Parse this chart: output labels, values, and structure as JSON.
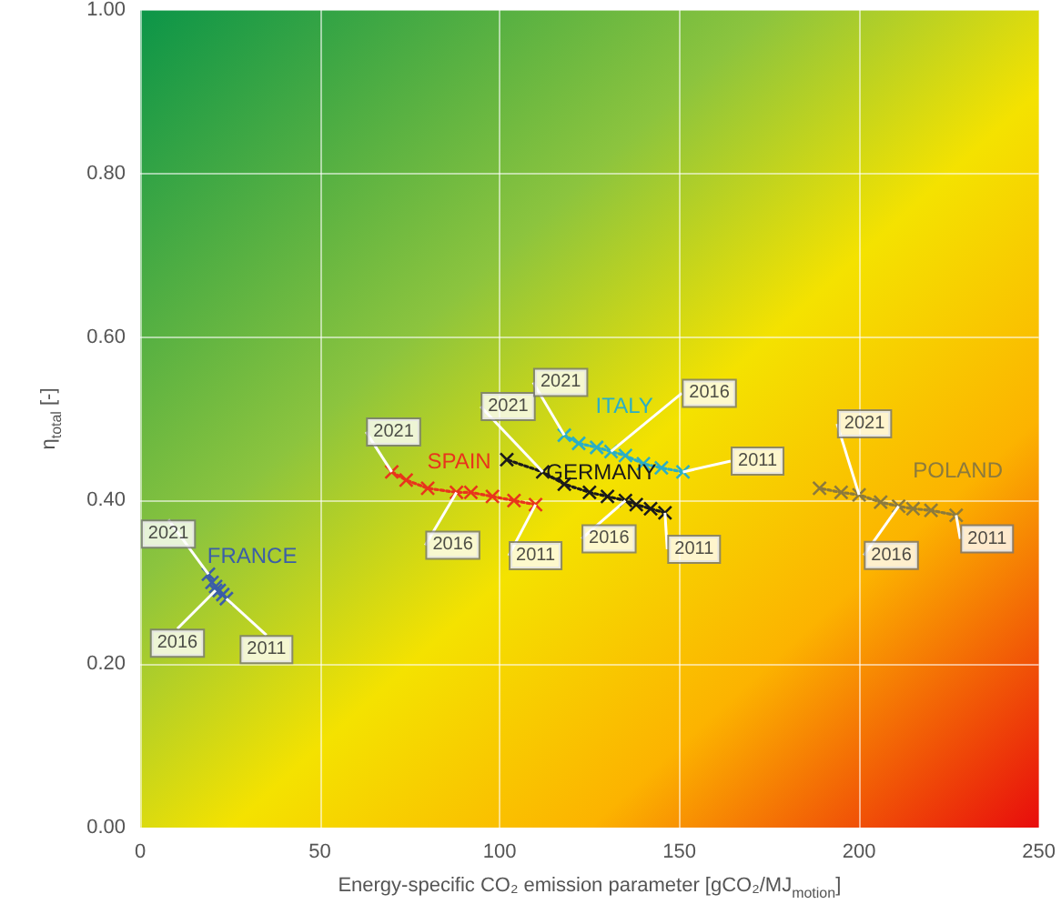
{
  "chart_data": {
    "type": "line",
    "xlabel": "Energy-specific CO₂ emission parameter [gCO₂/MJ$_{motion}$]",
    "ylabel": "η$_{total}$ [-]",
    "xlim": [
      0,
      250
    ],
    "xticks": [
      0,
      50,
      100,
      150,
      200,
      250
    ],
    "ylim": [
      0,
      1
    ],
    "yticks": [
      {
        "value": 0,
        "label": "0.00"
      },
      {
        "value": 0.2,
        "label": "0.20"
      },
      {
        "value": 0.4,
        "label": "0.40"
      },
      {
        "value": 0.6,
        "label": "0.60"
      },
      {
        "value": 0.8,
        "label": "0.80"
      },
      {
        "value": 1,
        "label": "1.00"
      }
    ],
    "grid": true,
    "marker": "cross",
    "line_style": "dotted",
    "legend": false,
    "series": [
      {
        "name": "FRANCE",
        "color": "#3b5ea8",
        "x": [
          24,
          23,
          22,
          21,
          21,
          20,
          19
        ],
        "values": [
          0.28,
          0.285,
          0.29,
          0.29,
          0.295,
          0.3,
          0.31
        ]
      },
      {
        "name": "SPAIN",
        "color": "#e8341c",
        "x": [
          110,
          104,
          98,
          92,
          88,
          80,
          74,
          70
        ],
        "values": [
          0.395,
          0.4,
          0.405,
          0.41,
          0.41,
          0.415,
          0.425,
          0.435
        ]
      },
      {
        "name": "GERMANY",
        "color": "#1a1a1a",
        "x": [
          146,
          142,
          138,
          135,
          130,
          125,
          118,
          112,
          102
        ],
        "values": [
          0.385,
          0.39,
          0.395,
          0.4,
          0.405,
          0.41,
          0.42,
          0.435,
          0.45
        ]
      },
      {
        "name": "ITALY",
        "color": "#2aaec6",
        "x": [
          151,
          145,
          140,
          135,
          131,
          127,
          122,
          118
        ],
        "values": [
          0.435,
          0.44,
          0.445,
          0.455,
          0.46,
          0.465,
          0.47,
          0.48
        ]
      },
      {
        "name": "POLAND",
        "color": "#8c7a3c",
        "x": [
          227,
          220,
          215,
          211,
          206,
          200,
          195,
          189
        ],
        "values": [
          0.382,
          0.388,
          0.39,
          0.393,
          0.398,
          0.407,
          0.41,
          0.415
        ]
      }
    ],
    "annotations": [
      {
        "text": "2021",
        "x": 19,
        "y": 0.31
      },
      {
        "text": "2016",
        "x": 21,
        "y": 0.29
      },
      {
        "text": "2011",
        "x": 24,
        "y": 0.28
      },
      {
        "text": "2021",
        "x": 70,
        "y": 0.435
      },
      {
        "text": "2016",
        "x": 88,
        "y": 0.41
      },
      {
        "text": "2011",
        "x": 110,
        "y": 0.395
      },
      {
        "text": "2021",
        "x": 112,
        "y": 0.435
      },
      {
        "text": "2016",
        "x": 135,
        "y": 0.4
      },
      {
        "text": "2011",
        "x": 146,
        "y": 0.385
      },
      {
        "text": "2021",
        "x": 118,
        "y": 0.48
      },
      {
        "text": "2016",
        "x": 131,
        "y": 0.46
      },
      {
        "text": "2011",
        "x": 151,
        "y": 0.435
      },
      {
        "text": "2021",
        "x": 200,
        "y": 0.407
      },
      {
        "text": "2016",
        "x": 211,
        "y": 0.393
      },
      {
        "text": "2011",
        "x": 227,
        "y": 0.382
      }
    ]
  }
}
